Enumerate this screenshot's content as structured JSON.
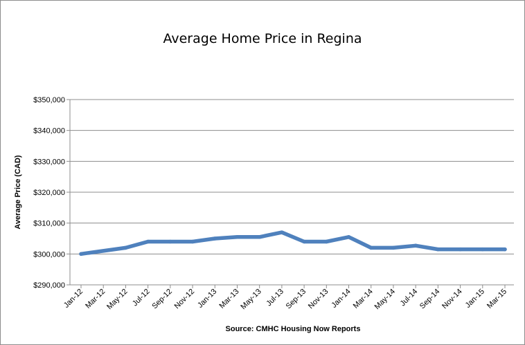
{
  "chart_data": {
    "type": "line",
    "title": "Average Home Price in Regina",
    "xlabel": "Source: CMHC Housing Now Reports",
    "ylabel": "Average Price  (CAD)",
    "ylim": [
      290000,
      350000
    ],
    "y_ticks": [
      290000,
      300000,
      310000,
      320000,
      330000,
      340000,
      350000
    ],
    "y_tick_labels": [
      "$290,000",
      "$300,000",
      "$310,000",
      "$320,000",
      "$330,000",
      "$340,000",
      "$350,000"
    ],
    "categories": [
      "Jan-12",
      "Mar-12",
      "May-12",
      "Jul-12",
      "Sep-12",
      "Nov-12",
      "Jan-13",
      "Mar-13",
      "May-13",
      "Jul-13",
      "Sep-13",
      "Nov-13",
      "Jan-14",
      "Mar-14",
      "May-14",
      "Jul-14",
      "Sep-14",
      "Nov-14",
      "Jan-15",
      "Mar-15"
    ],
    "grid": "horizontal",
    "legend": "none",
    "series": [
      {
        "color": "#4f81bd",
        "points": [
          {
            "x": "Jan-12",
            "y": 300000
          },
          {
            "x": "May-12",
            "y": 302000
          },
          {
            "x": "Jul-12",
            "y": 304000
          },
          {
            "x": "Sep-12",
            "y": 304000
          },
          {
            "x": "Nov-12",
            "y": 304000
          },
          {
            "x": "Jan-13",
            "y": 305000
          },
          {
            "x": "Mar-13",
            "y": 305500
          },
          {
            "x": "May-13",
            "y": 305500
          },
          {
            "x": "Jul-13",
            "y": 307000
          },
          {
            "x": "Sep-13",
            "y": 304000
          },
          {
            "x": "Nov-13",
            "y": 304000
          },
          {
            "x": "Jan-14",
            "y": 305500
          },
          {
            "x": "Mar-14",
            "y": 302000
          },
          {
            "x": "May-14",
            "y": 302000
          },
          {
            "x": "Jul-14",
            "y": 302700
          },
          {
            "x": "Sep-14",
            "y": 301500
          },
          {
            "x": "Nov-14",
            "y": 301500
          },
          {
            "x": "Jan-15",
            "y": 301500
          },
          {
            "x": "Mar-15",
            "y": 301500
          }
        ]
      }
    ]
  }
}
